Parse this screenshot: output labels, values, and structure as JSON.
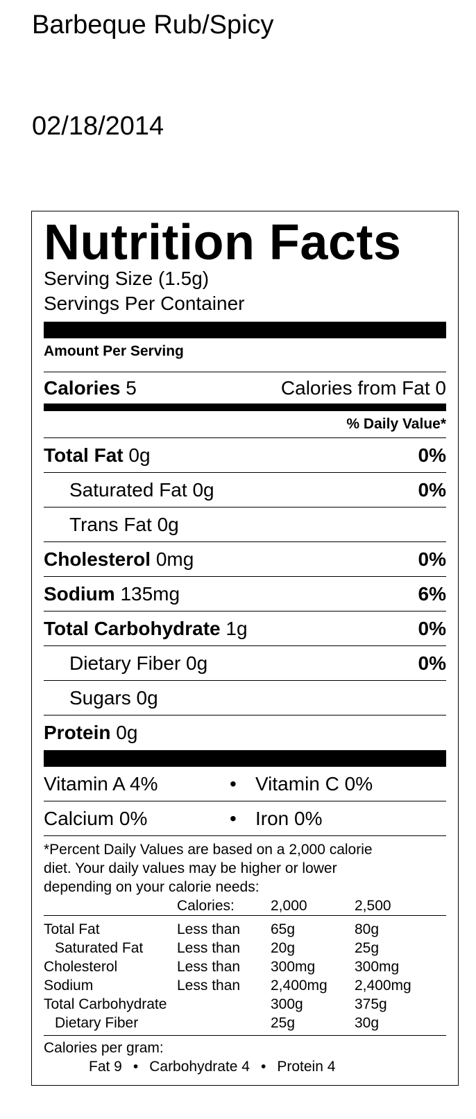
{
  "header": {
    "title": "Barbeque Rub/Spicy",
    "date": "02/18/2014"
  },
  "label": {
    "title": "Nutrition Facts",
    "serving_size": "Serving Size (1.5g)",
    "servings_per_container": "Servings Per Container",
    "amount_per_serving": "Amount Per Serving",
    "calories": {
      "label": "Calories",
      "value": "5"
    },
    "calories_from_fat": "Calories from Fat 0",
    "daily_value_heading": "% Daily Value*",
    "nutrients": [
      {
        "name": "Total Fat",
        "amount": "0g",
        "dv": "0%",
        "bold": true,
        "indent": false
      },
      {
        "name": "Saturated Fat",
        "amount": "0g",
        "dv": "0%",
        "bold": false,
        "indent": true
      },
      {
        "name": "Trans Fat",
        "amount": "0g",
        "bold": false,
        "indent": true
      },
      {
        "name": "Cholesterol",
        "amount": "0mg",
        "dv": "0%",
        "bold": true,
        "indent": false
      },
      {
        "name": "Sodium",
        "amount": "135mg",
        "dv": "6%",
        "bold": true,
        "indent": false
      },
      {
        "name": "Total Carbohydrate",
        "amount": "1g",
        "dv": "0%",
        "bold": true,
        "indent": false
      },
      {
        "name": "Dietary Fiber",
        "amount": "0g",
        "dv": "0%",
        "bold": false,
        "indent": true
      },
      {
        "name": "Sugars",
        "amount": "0g",
        "bold": false,
        "indent": true
      },
      {
        "name": "Protein",
        "amount": "0g",
        "bold": true,
        "indent": false
      }
    ],
    "vitamins": [
      [
        "Vitamin A 4%",
        "Vitamin C 0%"
      ],
      [
        "Calcium 0%",
        "Iron 0%"
      ]
    ],
    "footnote_lines": [
      "*Percent Daily Values are based on a 2,000 calorie",
      "diet. Your daily values may be higher or lower",
      "depending on your calorie needs:"
    ],
    "dv_table": {
      "calories_label": "Calories:",
      "columns": [
        "2,000",
        "2,500"
      ],
      "rows": [
        {
          "name": "Total Fat",
          "qualifier": "Less than",
          "values": [
            "65g",
            "80g"
          ],
          "indent": false
        },
        {
          "name": "Saturated Fat",
          "qualifier": "Less than",
          "values": [
            "20g",
            "25g"
          ],
          "indent": true
        },
        {
          "name": "Cholesterol",
          "qualifier": "Less than",
          "values": [
            "300mg",
            "300mg"
          ],
          "indent": false
        },
        {
          "name": "Sodium",
          "qualifier": "Less than",
          "values": [
            "2,400mg",
            "2,400mg"
          ],
          "indent": false
        },
        {
          "name": "Total Carbohydrate",
          "values": [
            "300g",
            "375g"
          ],
          "indent": false
        },
        {
          "name": "Dietary Fiber",
          "values": [
            "25g",
            "30g"
          ],
          "indent": true
        }
      ]
    },
    "calories_per_gram": {
      "label": "Calories per gram:",
      "items": [
        "Fat 9",
        "Carbohydrate 4",
        "Protein 4"
      ]
    }
  }
}
